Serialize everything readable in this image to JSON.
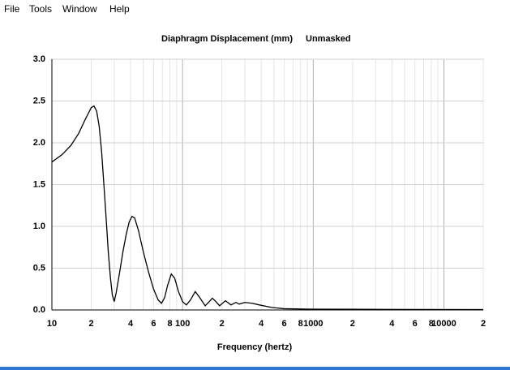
{
  "menu": [
    "File",
    "Tools",
    "Window",
    "Help"
  ],
  "chart_data": {
    "type": "line",
    "title": "Diaphragm Displacement (mm)",
    "subtitle": "Unmasked",
    "x_label": "Frequency (hertz)",
    "x_scale": "log",
    "grid": true,
    "xlim": [
      10,
      20000
    ],
    "ylim": [
      0,
      3
    ],
    "xticks": [
      {
        "value": 10,
        "label": "10"
      },
      {
        "value": 20,
        "label": "2"
      },
      {
        "value": 40,
        "label": "4"
      },
      {
        "value": 60,
        "label": "6"
      },
      {
        "value": 80,
        "label": "8"
      },
      100,
      {
        "value": 200,
        "label": "2"
      },
      {
        "value": 400,
        "label": "4"
      },
      {
        "value": 600,
        "label": "6"
      },
      {
        "value": 800,
        "label": "8"
      },
      1000,
      {
        "value": 2000,
        "label": "2"
      },
      {
        "value": 4000,
        "label": "4"
      },
      {
        "value": 6000,
        "label": "6"
      },
      {
        "value": 8000,
        "label": "8"
      },
      10000,
      {
        "value": 20000,
        "label": "2"
      }
    ],
    "xminor": [
      30,
      50,
      70,
      90,
      300,
      500,
      700,
      900,
      3000,
      5000,
      7000,
      9000
    ],
    "yticks": [
      {
        "value": 0,
        "label": "0.0"
      },
      0.5,
      {
        "value": 1,
        "label": "1.0"
      },
      1.5,
      {
        "value": 2,
        "label": "2.0"
      },
      2.5,
      {
        "value": 3,
        "label": "3.0"
      }
    ],
    "series": [
      {
        "color": "#000000",
        "x": [
          10,
          12,
          14,
          16,
          18,
          20,
          21,
          22,
          23,
          24,
          25,
          26,
          27,
          28,
          29,
          30,
          31,
          33,
          35,
          37,
          39,
          41,
          43,
          46,
          50,
          55,
          60,
          65,
          69,
          73,
          77,
          82,
          87,
          93,
          100,
          107,
          115,
          125,
          135,
          149,
          160,
          169,
          180,
          192,
          213,
          235,
          256,
          271,
          300,
          340,
          387,
          480,
          596,
          913,
          2000,
          5000,
          20000
        ],
        "values": [
          1.77,
          1.86,
          1.97,
          2.11,
          2.28,
          2.42,
          2.44,
          2.38,
          2.2,
          1.9,
          1.5,
          1.1,
          0.7,
          0.4,
          0.18,
          0.1,
          0.2,
          0.45,
          0.7,
          0.9,
          1.05,
          1.12,
          1.1,
          0.95,
          0.7,
          0.45,
          0.25,
          0.12,
          0.08,
          0.15,
          0.3,
          0.43,
          0.38,
          0.22,
          0.1,
          0.06,
          0.12,
          0.22,
          0.15,
          0.05,
          0.1,
          0.14,
          0.1,
          0.05,
          0.11,
          0.06,
          0.09,
          0.07,
          0.09,
          0.08,
          0.06,
          0.03,
          0.015,
          0.01,
          0.008,
          0.006,
          0.005
        ]
      }
    ]
  }
}
